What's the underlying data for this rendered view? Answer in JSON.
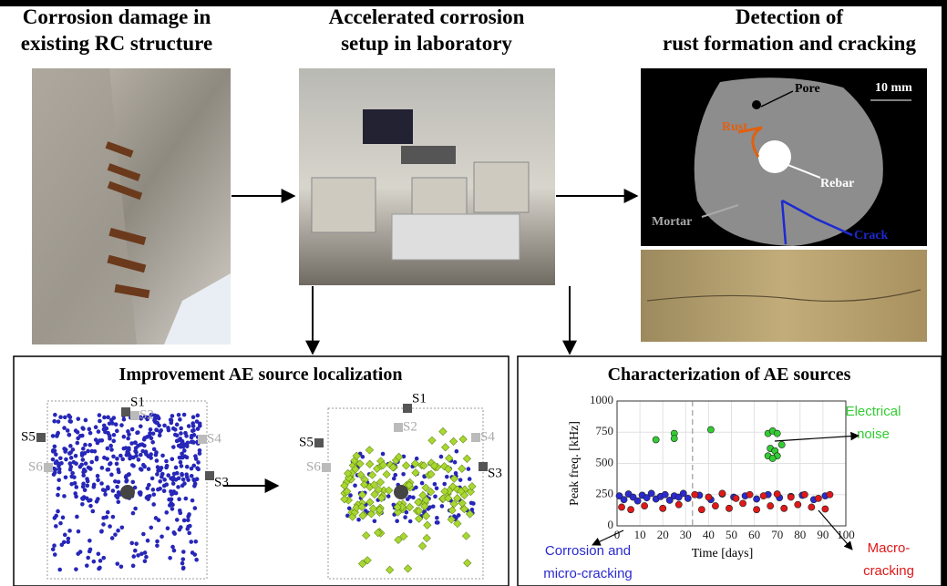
{
  "columns": [
    {
      "title_lines": [
        "Corrosion damage in",
        "existing RC structure"
      ]
    },
    {
      "title_lines": [
        "Accelerated corrosion",
        "setup in laboratory"
      ]
    },
    {
      "title_lines": [
        "Detection of",
        "rust formation and cracking"
      ]
    }
  ],
  "ct_labels": {
    "pore": "Pore",
    "rust": "Rust",
    "rebar": "Rebar",
    "mortar": "Mortar",
    "crack": "Crack",
    "scale": "10 mm"
  },
  "localization": {
    "title": "Improvement AE source localization",
    "sensors": [
      "S1",
      "S2",
      "S3",
      "S4",
      "S5",
      "S6"
    ]
  },
  "chart_data": {
    "type": "scatter",
    "title": "Characterization of AE sources",
    "x_label": "Time [days]",
    "y_label": "Peak freq. [kHz]",
    "xlim": [
      0,
      100
    ],
    "ylim": [
      0,
      1000
    ],
    "xticks": [
      0,
      10,
      20,
      30,
      40,
      50,
      60,
      70,
      80,
      90,
      100
    ],
    "yticks": [
      0,
      250,
      500,
      750,
      1000
    ],
    "grid": true,
    "marker_line": 33,
    "series": [
      {
        "color": "#2a2ad0",
        "x": [
          1,
          3,
          5,
          7,
          9,
          11,
          13,
          15,
          17,
          19,
          21,
          23,
          25,
          27,
          29,
          31,
          36,
          41,
          46,
          51,
          56,
          61,
          66,
          71,
          76,
          81,
          86,
          91
        ],
        "values": [
          240,
          210,
          255,
          230,
          200,
          245,
          225,
          260,
          215,
          235,
          250,
          205,
          240,
          230,
          260,
          220,
          245,
          210,
          255,
          230,
          240,
          215,
          250,
          225,
          235,
          245,
          210,
          240
        ]
      },
      {
        "color": "#e01818",
        "x": [
          2,
          6,
          12,
          20,
          27,
          34,
          37,
          40,
          43,
          46,
          49,
          52,
          55,
          58,
          61,
          64,
          67,
          70,
          73,
          76,
          79,
          82,
          85,
          88,
          91,
          93
        ],
        "values": [
          150,
          130,
          160,
          140,
          170,
          250,
          130,
          230,
          160,
          260,
          140,
          220,
          180,
          250,
          130,
          240,
          160,
          255,
          140,
          230,
          170,
          250,
          150,
          220,
          135,
          250
        ]
      },
      {
        "color": "#33cc33",
        "x": [
          17,
          25,
          25,
          41,
          66,
          68,
          70,
          67,
          69,
          66,
          70,
          68,
          72
        ],
        "values": [
          690,
          740,
          700,
          770,
          740,
          760,
          740,
          620,
          600,
          560,
          560,
          540,
          650
        ]
      }
    ],
    "annotations": [
      {
        "lines": [
          "Electrical",
          "noise"
        ],
        "color": "#33cc33"
      },
      {
        "lines": [
          "Corrosion and",
          "micro-cracking"
        ],
        "color": "#2a2ad0"
      },
      {
        "lines": [
          "Macro-",
          "cracking"
        ],
        "color": "#e01818"
      }
    ]
  }
}
